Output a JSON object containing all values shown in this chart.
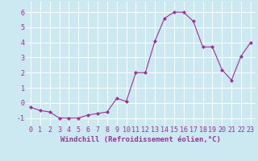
{
  "x": [
    0,
    1,
    2,
    3,
    4,
    5,
    6,
    7,
    8,
    9,
    10,
    11,
    12,
    13,
    14,
    15,
    16,
    17,
    18,
    19,
    20,
    21,
    22,
    23
  ],
  "y": [
    -0.3,
    -0.5,
    -0.6,
    -1.0,
    -1.0,
    -1.0,
    -0.8,
    -0.7,
    -0.6,
    0.3,
    0.1,
    2.0,
    2.0,
    4.1,
    5.6,
    6.0,
    6.0,
    5.4,
    3.7,
    3.7,
    2.2,
    1.5,
    3.1,
    4.0
  ],
  "line_color": "#993399",
  "marker": "D",
  "marker_size": 2.0,
  "line_width": 0.8,
  "xlabel": "Windchill (Refroidissement éolien,°C)",
  "xlabel_fontsize": 6.5,
  "xlabel_color": "#993399",
  "ylabel_ticks": [
    -1,
    0,
    1,
    2,
    3,
    4,
    5,
    6
  ],
  "xtick_labels": [
    "0",
    "1",
    "2",
    "3",
    "4",
    "5",
    "6",
    "7",
    "8",
    "9",
    "10",
    "11",
    "12",
    "13",
    "14",
    "15",
    "16",
    "17",
    "18",
    "19",
    "20",
    "21",
    "22",
    "23"
  ],
  "ylim": [
    -1.5,
    6.7
  ],
  "xlim": [
    -0.5,
    23.5
  ],
  "background_color": "#cce8f0",
  "grid_color": "#ffffff",
  "tick_fontsize": 6.0,
  "tick_color": "#993399"
}
